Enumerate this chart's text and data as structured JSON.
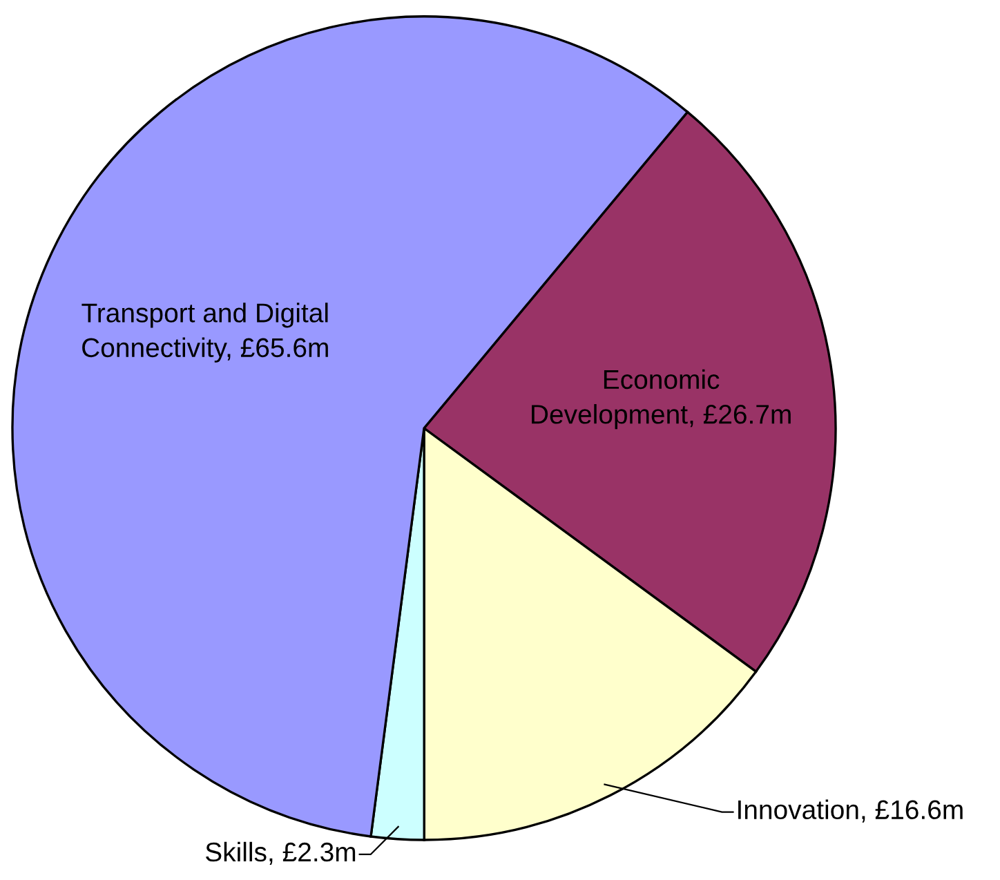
{
  "chart_data": {
    "type": "pie",
    "categories": [
      "Economic\nDevelopment",
      "Innovation",
      "Skills",
      "Transport and Digital\nConnectivity"
    ],
    "values": [
      26.7,
      16.6,
      2.3,
      65.6
    ],
    "value_labels": [
      "£26.7m",
      "£16.6m",
      "£2.3m",
      "£65.6m"
    ],
    "colors": [
      "#993366",
      "#ffffcc",
      "#ccffff",
      "#9999ff"
    ],
    "legend": false
  }
}
